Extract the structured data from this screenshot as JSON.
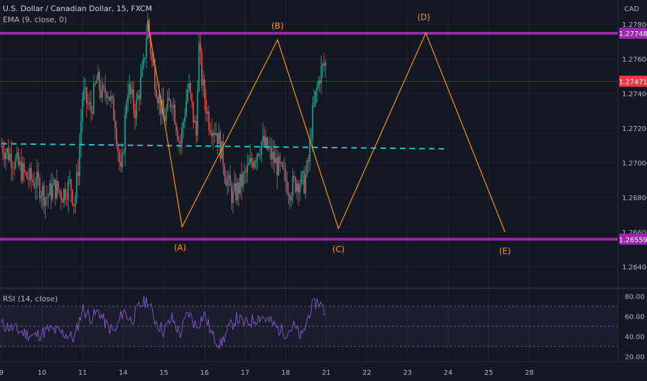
{
  "header": {
    "symbol": "U.S. Dollar / Canadian Dollar, 15, FXCM",
    "ema_label": "EMA (9, close, 0)",
    "rsi_label": "RSI (14, close)",
    "currency": "CAD"
  },
  "colors": {
    "background": "#131722",
    "grid": "#1f2330",
    "bull": "#26a69a",
    "bear": "#ef5350",
    "level": "#9c27b0",
    "zigzag": "#ff9800",
    "ema": "#26c6da",
    "rsi": "#7e57c2",
    "price_badge": "#f23645"
  },
  "chart_data": {
    "type": "candlestick",
    "symbol": "USD/CAD",
    "timeframe": "15",
    "y_range": [
      1.263,
      1.279
    ],
    "y_ticks": [
      "1.28000",
      "1.27800",
      "1.27600",
      "1.27400",
      "1.27200",
      "1.27000",
      "1.26800",
      "1.26600",
      "1.26400"
    ],
    "x_ticks": [
      "9",
      "10",
      "11",
      "14",
      "15",
      "16",
      "17",
      "18",
      "21",
      "22",
      "23",
      "24",
      "25",
      "28"
    ],
    "price_path": [
      [
        0.0,
        1.271
      ],
      [
        0.3,
        1.2702
      ],
      [
        0.6,
        1.2692
      ],
      [
        0.9,
        1.2688
      ],
      [
        1.1,
        1.268
      ],
      [
        1.3,
        1.2686
      ],
      [
        1.5,
        1.2682
      ],
      [
        1.7,
        1.2688
      ],
      [
        1.8,
        1.2676
      ],
      [
        1.9,
        1.27
      ],
      [
        2.0,
        1.274
      ],
      [
        2.2,
        1.273
      ],
      [
        2.35,
        1.2748
      ],
      [
        2.5,
        1.2738
      ],
      [
        2.6,
        1.2744
      ],
      [
        2.8,
        1.2725
      ],
      [
        2.95,
        1.269
      ],
      [
        3.1,
        1.2745
      ],
      [
        3.3,
        1.273
      ],
      [
        3.5,
        1.2755
      ],
      [
        3.6,
        1.2782
      ],
      [
        3.7,
        1.276
      ],
      [
        3.85,
        1.274
      ],
      [
        4.0,
        1.2725
      ],
      [
        4.2,
        1.2738
      ],
      [
        4.4,
        1.271
      ],
      [
        4.6,
        1.2745
      ],
      [
        4.8,
        1.2715
      ],
      [
        4.85,
        1.277
      ],
      [
        4.95,
        1.2745
      ],
      [
        5.1,
        1.2725
      ],
      [
        5.3,
        1.2718
      ],
      [
        5.45,
        1.2703
      ],
      [
        5.55,
        1.269
      ],
      [
        5.7,
        1.268
      ],
      [
        5.9,
        1.2688
      ],
      [
        6.05,
        1.2695
      ],
      [
        6.25,
        1.2705
      ],
      [
        6.4,
        1.2712
      ],
      [
        6.55,
        1.2708
      ],
      [
        6.7,
        1.2702
      ],
      [
        6.9,
        1.2694
      ],
      [
        7.1,
        1.2685
      ],
      [
        7.3,
        1.269
      ],
      [
        7.45,
        1.2688
      ],
      [
        7.55,
        1.2698
      ],
      [
        7.65,
        1.2725
      ],
      [
        7.75,
        1.274
      ],
      [
        7.85,
        1.2752
      ],
      [
        8.0,
        1.2758
      ]
    ],
    "levels": [
      {
        "label": "1.27748",
        "value": 1.27748
      },
      {
        "label": "1.26559",
        "value": 1.26559
      }
    ],
    "current_price": {
      "label": "1.27471",
      "value": 1.27471
    },
    "ema_projection": {
      "label": "EMA (9, close, 0)",
      "from": [
        0.0,
        1.2711
      ],
      "to": [
        11.0,
        1.2708
      ]
    },
    "zigzag": {
      "points": [
        [
          3.6,
          1.2782
        ],
        [
          4.45,
          1.2663
        ],
        [
          6.8,
          1.2771
        ],
        [
          8.3,
          1.2662
        ],
        [
          10.45,
          1.2775
        ],
        [
          12.4,
          1.266
        ]
      ],
      "labels": [
        {
          "text": "(A)",
          "x": 4.4,
          "y": 1.2651
        },
        {
          "text": "(B)",
          "x": 6.8,
          "y": 1.2779
        },
        {
          "text": "(C)",
          "x": 8.3,
          "y": 1.265
        },
        {
          "text": "(D)",
          "x": 10.4,
          "y": 1.2784
        },
        {
          "text": "(E)",
          "x": 12.4,
          "y": 1.2649
        }
      ]
    },
    "rsi": {
      "label": "RSI (14, close)",
      "y_range": [
        15,
        85
      ],
      "y_ticks": [
        "80.00",
        "60.00",
        "40.00",
        "20.00"
      ],
      "bands": [
        30,
        50,
        70
      ],
      "path": [
        [
          0.0,
          52
        ],
        [
          0.4,
          46
        ],
        [
          0.8,
          40
        ],
        [
          1.2,
          47
        ],
        [
          1.6,
          42
        ],
        [
          1.8,
          38
        ],
        [
          2.0,
          68
        ],
        [
          2.2,
          58
        ],
        [
          2.4,
          65
        ],
        [
          2.6,
          50
        ],
        [
          2.8,
          44
        ],
        [
          3.0,
          66
        ],
        [
          3.2,
          55
        ],
        [
          3.4,
          70
        ],
        [
          3.6,
          76
        ],
        [
          3.8,
          55
        ],
        [
          4.0,
          45
        ],
        [
          4.2,
          58
        ],
        [
          4.4,
          42
        ],
        [
          4.6,
          64
        ],
        [
          4.8,
          50
        ],
        [
          5.0,
          62
        ],
        [
          5.2,
          40
        ],
        [
          5.4,
          32
        ],
        [
          5.6,
          48
        ],
        [
          5.8,
          58
        ],
        [
          6.0,
          52
        ],
        [
          6.2,
          56
        ],
        [
          6.4,
          60
        ],
        [
          6.6,
          55
        ],
        [
          6.8,
          48
        ],
        [
          7.0,
          44
        ],
        [
          7.2,
          50
        ],
        [
          7.4,
          38
        ],
        [
          7.6,
          66
        ],
        [
          7.8,
          76
        ],
        [
          8.0,
          62
        ]
      ]
    }
  }
}
